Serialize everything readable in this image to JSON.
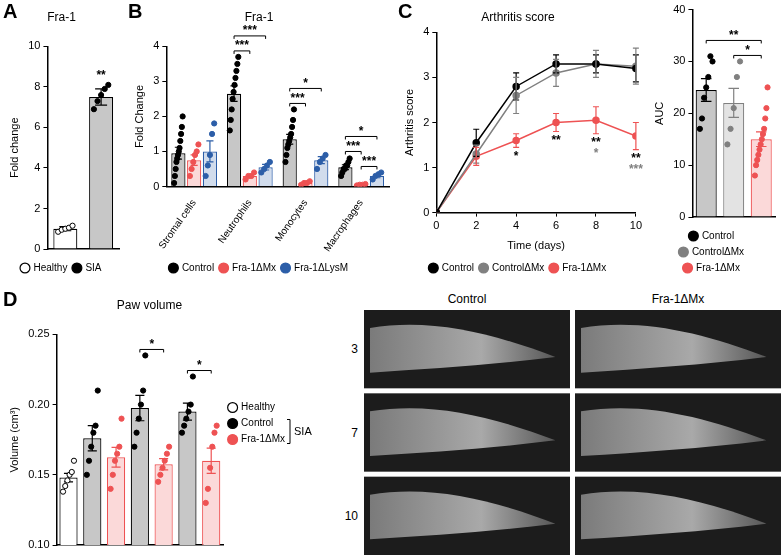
{
  "chart_data": [
    {
      "panel": "A",
      "type": "bar",
      "title": "Fra-1",
      "y_label": "Fold change",
      "categories": [
        null,
        null
      ],
      "ylim": [
        0,
        10
      ],
      "yticks": [
        0,
        2,
        4,
        6,
        8,
        10
      ],
      "grid": false,
      "tick_labels": "y",
      "legend": "bottom",
      "series": [
        {
          "name": "Healthy",
          "color": "#000000",
          "marker": "open_circle",
          "values": [
            1.0,
            null
          ],
          "errors": [
            0.1,
            null
          ],
          "points": [
            [
              0.85,
              0.95,
              1.0,
              1.05,
              1.15
            ],
            null
          ]
        },
        {
          "name": "SIA",
          "color": "#000000",
          "marker": "circle",
          "values": [
            null,
            7.5
          ],
          "errors": [
            null,
            0.4
          ],
          "points": [
            null,
            [
              6.9,
              7.3,
              7.6,
              7.9,
              8.1
            ]
          ]
        }
      ],
      "annotations": [
        {
          "text": "**",
          "at": [
            1,
            1
          ]
        }
      ]
    },
    {
      "panel": "B",
      "type": "bar",
      "title": "Fra-1",
      "y_label": "Fold Change",
      "categories": [
        "Stromal cells",
        "Neutrophils",
        "Monocytes",
        "Macrophages"
      ],
      "ylim": [
        0,
        4
      ],
      "yticks": [
        0,
        1,
        2,
        3,
        4
      ],
      "grid": false,
      "legend": "bottom",
      "series": [
        {
          "name": "Control",
          "color": "#000000",
          "marker": "circle",
          "values": [
            0.95,
            2.65,
            1.35,
            0.55
          ],
          "errors": [
            0.17,
            0.22,
            0.14,
            0.07
          ],
          "points": [
            [
              0.1,
              0.3,
              0.5,
              0.7,
              0.8,
              0.9,
              1.0,
              1.1,
              1.3,
              1.5,
              1.7,
              2.0
            ],
            [
              1.6,
              1.9,
              2.2,
              2.5,
              2.7,
              2.9,
              3.1,
              3.3,
              3.5,
              3.7
            ],
            [
              0.7,
              0.9,
              1.1,
              1.2,
              1.3,
              1.4,
              1.5,
              1.7,
              1.9,
              2.2
            ],
            [
              0.3,
              0.4,
              0.5,
              0.5,
              0.6,
              0.6,
              0.7,
              0.8
            ]
          ]
        },
        {
          "name": "Fra-1ΔMx",
          "color": "#ee5253",
          "marker": "circle",
          "values": [
            0.75,
            0.3,
            0.1,
            0.05
          ],
          "errors": [
            0.15,
            0.05,
            0.02,
            0.01
          ],
          "points": [
            [
              0.3,
              0.5,
              0.7,
              0.9,
              1.0,
              1.2
            ],
            [
              0.2,
              0.3,
              0.3,
              0.4
            ],
            [
              0.05,
              0.1,
              0.1,
              0.15
            ],
            [
              0.03,
              0.05,
              0.05,
              0.07
            ]
          ]
        },
        {
          "name": "Fra-1ΔLysM",
          "color": "#2c5ea8",
          "marker": "circle",
          "values": [
            1.0,
            0.55,
            0.75,
            0.3
          ],
          "errors": [
            0.3,
            0.08,
            0.1,
            0.05
          ],
          "points": [
            [
              0.3,
              0.6,
              0.9,
              1.5,
              1.8
            ],
            [
              0.4,
              0.5,
              0.6,
              0.7
            ],
            [
              0.5,
              0.7,
              0.8,
              0.9
            ],
            [
              0.2,
              0.3,
              0.35,
              0.4
            ]
          ]
        }
      ],
      "annotations": [
        {
          "text": "***",
          "between": [
            [
              1,
              0
            ],
            [
              1,
              1
            ]
          ]
        },
        {
          "text": "***",
          "between": [
            [
              1,
              0
            ],
            [
              1,
              2
            ]
          ]
        },
        {
          "text": "***",
          "between": [
            [
              2,
              0
            ],
            [
              2,
              1
            ]
          ]
        },
        {
          "text": "*",
          "between": [
            [
              2,
              0
            ],
            [
              2,
              2
            ]
          ]
        },
        {
          "text": "***",
          "between": [
            [
              3,
              1
            ],
            [
              3,
              2
            ]
          ]
        },
        {
          "text": "***",
          "between": [
            [
              3,
              0
            ],
            [
              3,
              1
            ]
          ]
        },
        {
          "text": "*",
          "between": [
            [
              3,
              0
            ],
            [
              3,
              2
            ]
          ]
        }
      ]
    },
    {
      "panel": "C",
      "type": "line",
      "title": "Arthritis score",
      "y_label": "Arthritis score",
      "x_label": "Time (days)",
      "x": [
        0,
        2,
        4,
        6,
        8,
        10
      ],
      "xlim": [
        0,
        10
      ],
      "xticks": [
        0,
        2,
        4,
        6,
        8,
        10
      ],
      "ylim": [
        0,
        4
      ],
      "yticks": [
        0,
        1,
        2,
        3,
        4
      ],
      "grid": false,
      "legend": "bottom",
      "series": [
        {
          "name": "Control",
          "color": "#000000",
          "marker": "circle",
          "values": [
            0,
            1.55,
            2.8,
            3.3,
            3.3,
            3.2
          ],
          "errors": [
            0,
            0.3,
            0.3,
            0.2,
            0.2,
            0.3
          ]
        },
        {
          "name": "ControlΔMx",
          "color": "#808080",
          "marker": "circle",
          "values": [
            0,
            1.3,
            2.6,
            3.1,
            3.3,
            3.25
          ],
          "errors": [
            0,
            0.2,
            0.4,
            0.3,
            0.3,
            0.4
          ]
        },
        {
          "name": "Fra-1ΔMx",
          "color": "#ee5253",
          "marker": "circle",
          "values": [
            0,
            1.25,
            1.6,
            2.0,
            2.05,
            1.7
          ],
          "errors": [
            0,
            0.2,
            0.15,
            0.2,
            0.3,
            0.3
          ]
        }
      ],
      "annotations": [
        {
          "x": 4,
          "text": "*",
          "color": "#000000"
        },
        {
          "x": 6,
          "text": "**",
          "color": "#000000"
        },
        {
          "x": 8,
          "text": "**",
          "color": "#000000"
        },
        {
          "x": 8,
          "text": "*",
          "color": "#808080"
        },
        {
          "x": 10,
          "text": "**",
          "color": "#000000"
        },
        {
          "x": 10,
          "text": "***",
          "color": "#808080"
        }
      ]
    },
    {
      "type": "bar",
      "y_label": "AUC",
      "categories": [
        null,
        null,
        null
      ],
      "ylim": [
        0,
        40
      ],
      "yticks": [
        0,
        10,
        20,
        30,
        40
      ],
      "grid": false,
      "tick_labels": "y",
      "legend": "bottom",
      "series": [
        {
          "name": "Control",
          "color": "#000000",
          "marker": "circle",
          "values": [
            24.5,
            null,
            null
          ],
          "errors": [
            2.2,
            null,
            null
          ],
          "points": [
            [
              17,
              19,
              23,
              25,
              27,
              31,
              30
            ],
            null,
            null
          ]
        },
        {
          "name": "ControlΔMx",
          "color": "#808080",
          "marker": "circle",
          "values": [
            null,
            22,
            null
          ],
          "errors": [
            null,
            2.8,
            null
          ],
          "points": [
            null,
            [
              14,
              17,
              21,
              27,
              30
            ],
            null
          ]
        },
        {
          "name": "Fra-1ΔMx",
          "color": "#ee5253",
          "marker": "circle",
          "values": [
            null,
            null,
            15
          ],
          "errors": [
            null,
            null,
            1.4
          ],
          "points": [
            null,
            null,
            [
              8,
              10,
              11,
              12,
              13,
              14,
              15,
              16,
              17,
              19,
              21,
              25
            ]
          ]
        }
      ],
      "annotations": [
        {
          "text": "*",
          "between": [
            [
              1,
              1
            ],
            [
              2,
              2
            ]
          ]
        },
        {
          "text": "**",
          "between": [
            [
              0,
              0
            ],
            [
              2,
              2
            ]
          ]
        }
      ]
    },
    {
      "panel": "D",
      "type": "bar",
      "title": "Paw volume",
      "y_label": "Volume (cm³)",
      "categories": [
        null,
        null,
        null,
        null,
        null,
        null,
        null
      ],
      "ylim": [
        0.1,
        0.25
      ],
      "yticks": [
        {
          "value": 0.1,
          "label": "0.10"
        },
        {
          "value": 0.15,
          "label": "0.15"
        },
        {
          "value": 0.2,
          "label": "0.20"
        },
        {
          "value": 0.25,
          "label": "0.25"
        }
      ],
      "grid": false,
      "tick_labels": "y",
      "legend": "right",
      "series": [
        {
          "name": "Healthy",
          "color": "#000000",
          "marker": "open_circle",
          "values": [
            0.148,
            null,
            null,
            null,
            null,
            null,
            null
          ],
          "errors": [
            0.003,
            null,
            null,
            null,
            null,
            null,
            null
          ],
          "points": [
            [
              0.138,
              0.142,
              0.146,
              0.15,
              0.152,
              0.16
            ],
            null,
            null,
            null,
            null,
            null,
            null
          ]
        },
        {
          "name": "Control",
          "color": "#000000",
          "marker": "circle",
          "values": [
            null,
            0.176,
            null,
            0.1975,
            null,
            0.195,
            null
          ],
          "errors": [
            null,
            0.009,
            null,
            0.009,
            null,
            0.006,
            null
          ],
          "points": [
            null,
            [
              0.15,
              0.16,
              0.17,
              0.18,
              0.185,
              0.21
            ],
            null,
            [
              0.17,
              0.18,
              0.19,
              0.2,
              0.21,
              0.235
            ],
            null,
            [
              0.18,
              0.185,
              0.19,
              0.195,
              0.2,
              0.22
            ],
            null
          ]
        },
        {
          "name": "Fra-1ΔMx",
          "color": "#ee5253",
          "marker": "circle",
          "values": [
            null,
            null,
            0.1625,
            null,
            0.1575,
            null,
            0.16
          ],
          "errors": [
            null,
            null,
            0.007,
            null,
            0.004,
            null,
            0.009
          ],
          "points": [
            null,
            null,
            [
              0.14,
              0.15,
              0.16,
              0.165,
              0.17,
              0.19
            ],
            null,
            [
              0.145,
              0.15,
              0.155,
              0.16,
              0.165,
              0.17
            ],
            null,
            [
              0.13,
              0.14,
              0.155,
              0.17,
              0.18,
              0.185
            ]
          ]
        }
      ],
      "annotations": [
        {
          "text": "*",
          "between": [
            [
              3,
              1
            ],
            [
              4,
              2
            ]
          ]
        },
        {
          "text": "*",
          "between": [
            [
              5,
              1
            ],
            [
              6,
              2
            ]
          ]
        },
        {
          "text": "SIA",
          "legend_group": [
            "Control",
            "Fra-1ΔMx"
          ]
        }
      ]
    }
  ],
  "images": {
    "columns": [
      "Control",
      "Fra-1ΔMx"
    ],
    "rows": [
      3,
      7,
      10
    ]
  }
}
